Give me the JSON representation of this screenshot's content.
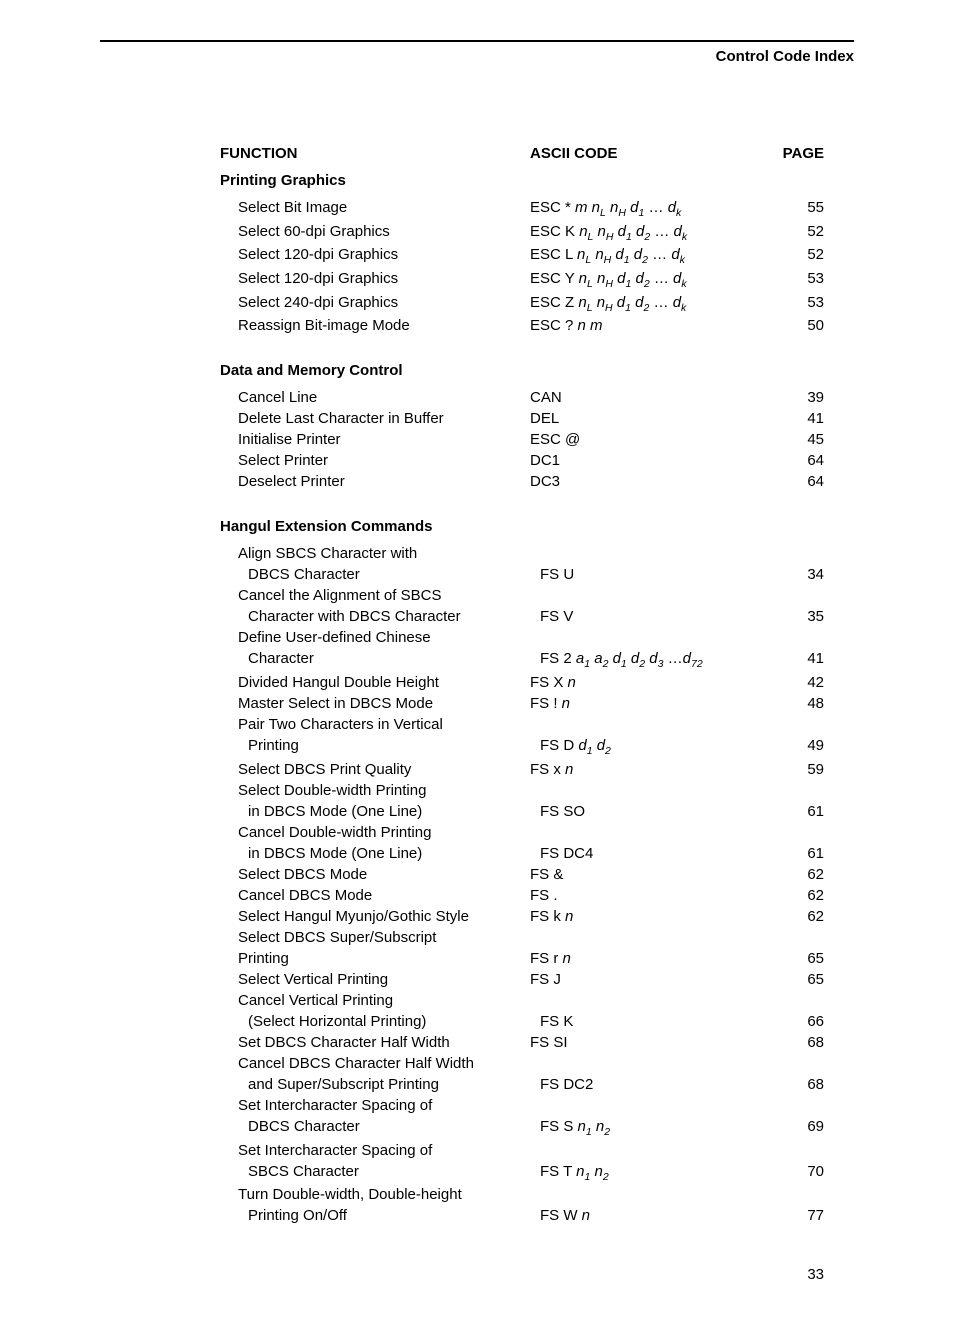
{
  "header": {
    "title": "Control Code Index"
  },
  "columns": {
    "function": "FUNCTION",
    "ascii": "ASCII CODE",
    "page": "PAGE"
  },
  "footer": {
    "page_number": "33"
  },
  "sections": [
    {
      "title": "Printing Graphics",
      "rows": [
        {
          "func": "Select Bit Image",
          "ascii": "ESC * <i>m n<sub>L</sub> n<sub>H</sub> d<sub>1</sub></i> … <i>d<sub>k</sub></i>",
          "page": "55"
        },
        {
          "func": "Select 60-dpi Graphics",
          "ascii": "ESC K <i>n<sub>L</sub> n<sub>H</sub> d<sub>1</sub> d<sub>2</sub></i> … <i>d<sub>k</sub></i>",
          "page": "52"
        },
        {
          "func": "Select 120-dpi Graphics",
          "ascii": "ESC L <i>n<sub>L</sub> n<sub>H</sub> d<sub>1</sub> d<sub>2</sub></i> … <i>d<sub>k</sub></i>",
          "page": "52"
        },
        {
          "func": "Select 120-dpi Graphics",
          "ascii": "ESC Y <i>n<sub>L</sub> n<sub>H</sub> d<sub>1</sub> d<sub>2</sub></i> … <i>d<sub>k</sub></i>",
          "page": "53"
        },
        {
          "func": "Select 240-dpi Graphics",
          "ascii": "ESC Z <i>n<sub>L</sub> n<sub>H</sub> d<sub>1</sub> d<sub>2</sub></i> … <i>d<sub>k</sub></i>",
          "page": "53"
        },
        {
          "func": "Reassign Bit-image Mode",
          "ascii": "ESC ? <i>n m</i>",
          "page": "50"
        }
      ]
    },
    {
      "title": "Data and Memory Control",
      "rows": [
        {
          "func": "Cancel Line",
          "ascii": "CAN",
          "page": "39"
        },
        {
          "func": "Delete Last Character in Buffer",
          "ascii": "DEL",
          "page": "41"
        },
        {
          "func": "Initialise Printer",
          "ascii": "ESC @",
          "page": "45"
        },
        {
          "func": "Select Printer",
          "ascii": "DC1",
          "page": "64"
        },
        {
          "func": "Deselect Printer",
          "ascii": "DC3",
          "page": "64"
        }
      ]
    },
    {
      "title": "Hangul Extension Commands",
      "rows": [
        {
          "func": "Align SBCS Character with",
          "ascii": "",
          "page": ""
        },
        {
          "func": " DBCS Character",
          "ascii": "FS U",
          "page": "34"
        },
        {
          "func": "Cancel the Alignment of SBCS",
          "ascii": "",
          "page": ""
        },
        {
          "func": " Character with DBCS Character",
          "ascii": "FS V",
          "page": "35"
        },
        {
          "func": "Define User-defined Chinese",
          "ascii": "",
          "page": ""
        },
        {
          "func": " Character",
          "ascii": "FS 2 <i>a<sub>1</sub> a<sub>2</sub> d<sub>1</sub> d<sub>2</sub> d<sub>3</sub></i> …<i>d<sub>72</sub></i>",
          "page": "41"
        },
        {
          "func": "Divided Hangul Double Height",
          "ascii": "FS X <i>n</i>",
          "page": "42"
        },
        {
          "func": "Master Select in DBCS Mode",
          "ascii": "FS ! <i>n</i>",
          "page": "48"
        },
        {
          "func": "Pair Two Characters in Vertical",
          "ascii": "",
          "page": ""
        },
        {
          "func": " Printing",
          "ascii": "FS D <i>d<sub>1</sub> d<sub>2</sub></i>",
          "page": "49"
        },
        {
          "func": "Select DBCS Print Quality",
          "ascii": "FS x <i>n</i>",
          "page": "59"
        },
        {
          "func": "Select Double-width Printing",
          "ascii": "",
          "page": ""
        },
        {
          "func": " in DBCS Mode (One Line)",
          "ascii": "FS SO",
          "page": "61"
        },
        {
          "func": "Cancel Double-width Printing",
          "ascii": "",
          "page": ""
        },
        {
          "func": " in DBCS Mode (One Line)",
          "ascii": "FS DC4",
          "page": "61"
        },
        {
          "func": "Select DBCS Mode",
          "ascii": "FS &",
          "page": "62"
        },
        {
          "func": "Cancel DBCS Mode",
          "ascii": "FS .",
          "page": "62"
        },
        {
          "func": "Select Hangul Myunjo/Gothic Style",
          "ascii": "FS k <i>n</i>",
          "page": "62"
        },
        {
          "func": "Select DBCS Super/Subscript",
          "ascii": "",
          "page": ""
        },
        {
          "func": "Printing",
          "ascii": "FS r <i>n</i>",
          "page": "65"
        },
        {
          "func": "Select Vertical Printing",
          "ascii": "FS J",
          "page": "65"
        },
        {
          "func": "Cancel Vertical Printing",
          "ascii": "",
          "page": ""
        },
        {
          "func": " (Select Horizontal Printing)",
          "ascii": "FS K",
          "page": "66"
        },
        {
          "func": "Set DBCS Character Half Width",
          "ascii": "FS SI",
          "page": "68"
        },
        {
          "func": "Cancel DBCS Character Half Width",
          "ascii": "",
          "page": ""
        },
        {
          "func": " and Super/Subscript Printing",
          "ascii": "FS DC2",
          "page": "68"
        },
        {
          "func": "Set Intercharacter Spacing of",
          "ascii": "",
          "page": ""
        },
        {
          "func": " DBCS Character",
          "ascii": "FS S <i>n<sub>1</sub> n<sub>2</sub></i>",
          "page": "69"
        },
        {
          "func": "Set Intercharacter Spacing of",
          "ascii": "",
          "page": ""
        },
        {
          "func": " SBCS Character",
          "ascii": "FS T <i>n<sub>1</sub> n<sub>2</sub></i>",
          "page": "70"
        },
        {
          "func": "Turn Double-width, Double-height",
          "ascii": "",
          "page": ""
        },
        {
          "func": " Printing On/Off",
          "ascii": "FS W <i>n</i>",
          "page": "77"
        }
      ]
    }
  ]
}
